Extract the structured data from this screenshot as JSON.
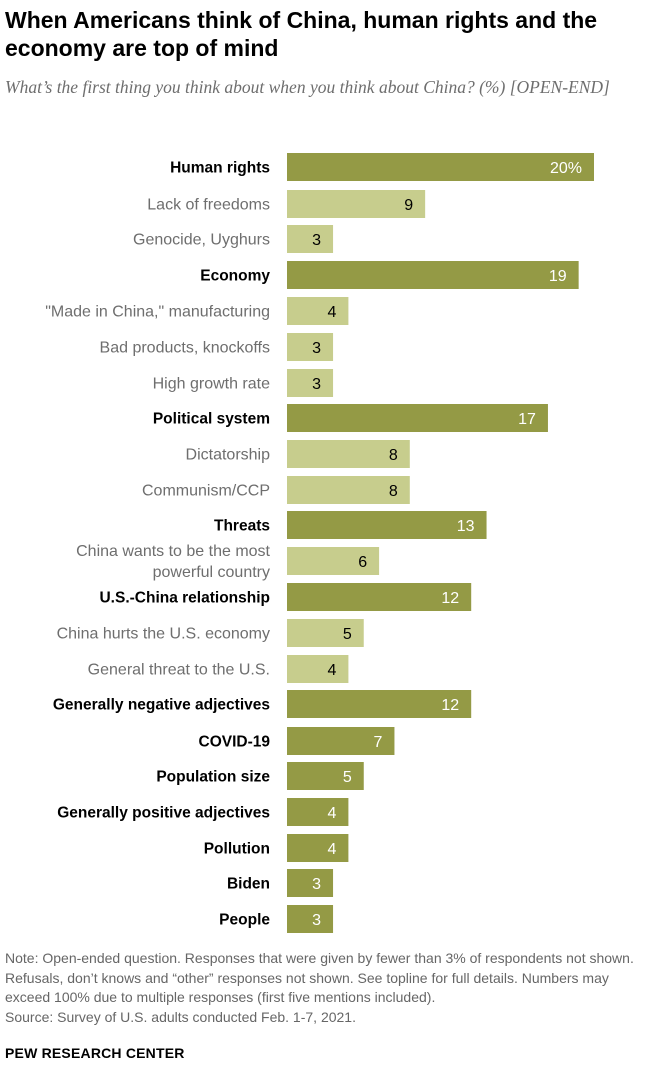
{
  "title": "When Americans think of China, human rights and the economy are top of mind",
  "subtitle": "What’s the first thing you think about when you think about China? (%) [OPEN-END]",
  "footer": {
    "note": "Note: Open-ended question. Responses that were given by fewer than 3% of respondents not shown. Refusals, don’t knows and “other” responses not shown. See topline for full details. Numbers may exceed 100% due to multiple responses (first five mentions included).",
    "source": "Source: Survey of U.S. adults conducted Feb. 1-7, 2021."
  },
  "brand": "PEW RESEARCH CENTER",
  "colors": {
    "main_bar": "#949a45",
    "sub_bar": "#c7cd8d",
    "main_label": "#000000",
    "sub_label": "#6e6e6e",
    "main_value": "#ffffff",
    "sub_value": "#000000"
  },
  "chart_data": {
    "type": "bar",
    "orientation": "horizontal",
    "unit": "%",
    "categories": [
      {
        "label": "Human rights",
        "value": 20,
        "value_label": "20%",
        "level": "main"
      },
      {
        "label": "Lack of freedoms",
        "value": 9,
        "value_label": "9",
        "level": "sub"
      },
      {
        "label": "Genocide, Uyghurs",
        "value": 3,
        "value_label": "3",
        "level": "sub"
      },
      {
        "label": "Economy",
        "value": 19,
        "value_label": "19",
        "level": "main"
      },
      {
        "label": "\"Made in China,\" manufacturing",
        "value": 4,
        "value_label": "4",
        "level": "sub"
      },
      {
        "label": "Bad products, knockoffs",
        "value": 3,
        "value_label": "3",
        "level": "sub"
      },
      {
        "label": "High growth rate",
        "value": 3,
        "value_label": "3",
        "level": "sub"
      },
      {
        "label": "Political system",
        "value": 17,
        "value_label": "17",
        "level": "main"
      },
      {
        "label": "Dictatorship",
        "value": 8,
        "value_label": "8",
        "level": "sub"
      },
      {
        "label": "Communism/CCP",
        "value": 8,
        "value_label": "8",
        "level": "sub"
      },
      {
        "label": "Threats",
        "value": 13,
        "value_label": "13",
        "level": "main"
      },
      {
        "label": [
          "China wants to be the most",
          "powerful country"
        ],
        "value": 6,
        "value_label": "6",
        "level": "sub"
      },
      {
        "label": "U.S.-China relationship",
        "value": 12,
        "value_label": "12",
        "level": "main"
      },
      {
        "label": "China hurts the U.S. economy",
        "value": 5,
        "value_label": "5",
        "level": "sub"
      },
      {
        "label": "General threat to the U.S.",
        "value": 4,
        "value_label": "4",
        "level": "sub"
      },
      {
        "label": "Generally negative adjectives",
        "value": 12,
        "value_label": "12",
        "level": "main"
      },
      {
        "label": "COVID-19",
        "value": 7,
        "value_label": "7",
        "level": "main"
      },
      {
        "label": "Population size",
        "value": 5,
        "value_label": "5",
        "level": "main"
      },
      {
        "label": "Generally positive adjectives",
        "value": 4,
        "value_label": "4",
        "level": "main"
      },
      {
        "label": "Pollution",
        "value": 4,
        "value_label": "4",
        "level": "main"
      },
      {
        "label": "Biden",
        "value": 3,
        "value_label": "3",
        "level": "main"
      },
      {
        "label": "People",
        "value": 3,
        "value_label": "3",
        "level": "main"
      }
    ]
  }
}
